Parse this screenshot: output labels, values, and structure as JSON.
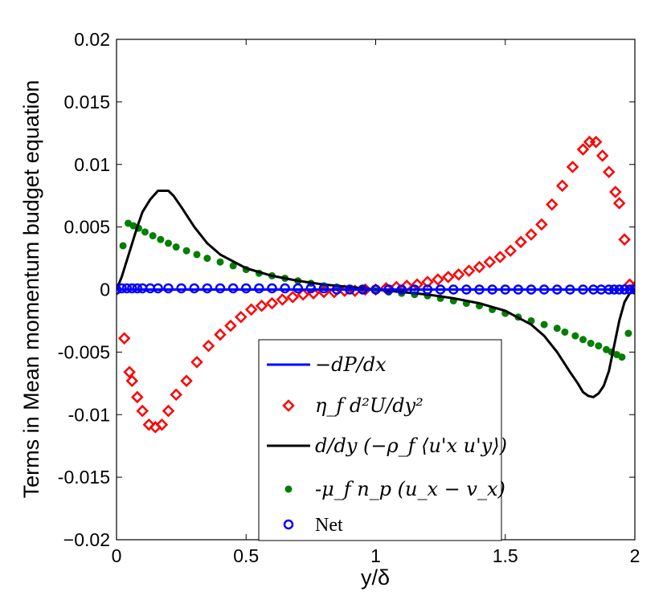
{
  "chart_data": {
    "type": "line",
    "title": "",
    "xlabel": "y/δ",
    "ylabel": "Terms in Mean momentum budget equation",
    "xlim": [
      0,
      2
    ],
    "ylim": [
      -0.02,
      0.02
    ],
    "xticks": [
      0,
      0.5,
      1,
      1.5,
      2
    ],
    "xtick_labels": [
      "0",
      "0.5",
      "1",
      "1.5",
      "2"
    ],
    "yticks": [
      -0.02,
      -0.015,
      -0.01,
      -0.005,
      0,
      0.005,
      0.01,
      0.015,
      0.02
    ],
    "ytick_labels": [
      "−0.02",
      "-0.015",
      "-0.01",
      "-0.005",
      "0",
      "0.005",
      "0.01",
      "0.015",
      "0.02"
    ],
    "legend_position": "bottom-center",
    "series": [
      {
        "name": "-dP/dx",
        "legend_text": "−dP/dx",
        "style": "line",
        "color": "#0000ff",
        "x": [
          0,
          2
        ],
        "values": [
          0.0,
          0.0
        ]
      },
      {
        "name": "eta_f d2U/dy2",
        "legend_text": "η_f d²U/dy²",
        "style": "diamond",
        "color": "#ff0000",
        "x": [
          0.0,
          0.03,
          0.05,
          0.06,
          0.08,
          0.1,
          0.125,
          0.15,
          0.175,
          0.2,
          0.23,
          0.27,
          0.31,
          0.355,
          0.4,
          0.44,
          0.48,
          0.52,
          0.56,
          0.6,
          0.64,
          0.68,
          0.72,
          0.76,
          0.8,
          0.84,
          0.88,
          0.92,
          0.96,
          1.0,
          1.04,
          1.08,
          1.12,
          1.16,
          1.2,
          1.24,
          1.28,
          1.32,
          1.36,
          1.4,
          1.44,
          1.48,
          1.52,
          1.56,
          1.6,
          1.64,
          1.68,
          1.72,
          1.76,
          1.8,
          1.825,
          1.85,
          1.875,
          1.9,
          1.925,
          1.94,
          1.96,
          1.98,
          2.0
        ],
        "values": [
          0.0,
          -0.0039,
          -0.0066,
          -0.0073,
          -0.0086,
          -0.0097,
          -0.0108,
          -0.011,
          -0.0108,
          -0.0097,
          -0.0084,
          -0.0073,
          -0.0058,
          -0.0045,
          -0.0036,
          -0.0029,
          -0.0022,
          -0.0016,
          -0.0013,
          -0.0011,
          -0.0008,
          -0.0006,
          -0.0004,
          -0.0003,
          -0.0002,
          -0.0002,
          -0.0001,
          -0.0001,
          0.0,
          0.0,
          0.0001,
          0.0002,
          0.0003,
          0.0004,
          0.0006,
          0.0008,
          0.001,
          0.0012,
          0.0015,
          0.0018,
          0.0022,
          0.0026,
          0.0031,
          0.0038,
          0.0044,
          0.0052,
          0.0068,
          0.0083,
          0.0098,
          0.0112,
          0.0118,
          0.0118,
          0.0107,
          0.0094,
          0.0078,
          0.0069,
          0.004,
          0.0004,
          0.0002
        ]
      },
      {
        "name": "d/dy(-rho_f <ux'uy'>)",
        "legend_text": "d/dy (−ρ_f ⟨u'x u'y⟩)",
        "style": "line",
        "color": "#000000",
        "x": [
          0.0,
          0.02,
          0.05,
          0.08,
          0.1,
          0.13,
          0.16,
          0.18,
          0.2,
          0.22,
          0.25,
          0.3,
          0.35,
          0.4,
          0.5,
          0.6,
          0.7,
          0.8,
          0.9,
          1.0,
          1.1,
          1.2,
          1.3,
          1.4,
          1.5,
          1.6,
          1.65,
          1.7,
          1.75,
          1.78,
          1.8,
          1.82,
          1.84,
          1.86,
          1.88,
          1.9,
          1.92,
          1.94,
          1.96,
          1.98,
          2.0
        ],
        "values": [
          0.0,
          0.001,
          0.003,
          0.005,
          0.0062,
          0.0072,
          0.0079,
          0.0079,
          0.0079,
          0.0075,
          0.0066,
          0.005,
          0.0037,
          0.0028,
          0.0017,
          0.0011,
          0.0007,
          0.0004,
          0.0002,
          0.0,
          -0.0002,
          -0.0004,
          -0.0007,
          -0.0011,
          -0.0017,
          -0.0028,
          -0.0037,
          -0.005,
          -0.0066,
          -0.0075,
          -0.0082,
          -0.0085,
          -0.0086,
          -0.0083,
          -0.0077,
          -0.0065,
          -0.0045,
          -0.0025,
          -0.001,
          -0.0003,
          0.0
        ]
      },
      {
        "name": "-mu_f n_p (u_x - v_x)",
        "legend_text": "-μ_f n_p (u_x − v_x)",
        "style": "dot",
        "color": "#007f00",
        "x": [
          0.025,
          0.045,
          0.065,
          0.085,
          0.11,
          0.14,
          0.17,
          0.2,
          0.23,
          0.27,
          0.31,
          0.35,
          0.4,
          0.45,
          0.5,
          0.55,
          0.6,
          0.65,
          0.7,
          0.75,
          0.8,
          0.85,
          0.9,
          0.95,
          1.0,
          1.05,
          1.1,
          1.15,
          1.2,
          1.25,
          1.3,
          1.35,
          1.4,
          1.45,
          1.5,
          1.55,
          1.6,
          1.65,
          1.7,
          1.73,
          1.77,
          1.8,
          1.83,
          1.86,
          1.89,
          1.91,
          1.93,
          1.95,
          1.975
        ],
        "values": [
          0.0035,
          0.0053,
          0.0051,
          0.0049,
          0.0046,
          0.0043,
          0.004,
          0.0037,
          0.0034,
          0.0031,
          0.0028,
          0.0025,
          0.0022,
          0.0019,
          0.0016,
          0.0013,
          0.0011,
          0.0009,
          0.0007,
          0.0005,
          0.0003,
          0.0002,
          0.0001,
          0.0,
          -0.0001,
          -0.0002,
          -0.0003,
          -0.0004,
          -0.0005,
          -0.0007,
          -0.0009,
          -0.0011,
          -0.0013,
          -0.0016,
          -0.0019,
          -0.0022,
          -0.0025,
          -0.0028,
          -0.0031,
          -0.0034,
          -0.0037,
          -0.004,
          -0.0043,
          -0.0045,
          -0.0048,
          -0.005,
          -0.0052,
          -0.0054,
          -0.0035
        ]
      },
      {
        "name": "Net",
        "legend_text": "Net",
        "style": "circle",
        "color": "#0000ff",
        "x": [
          0.0,
          0.02,
          0.04,
          0.06,
          0.08,
          0.1,
          0.13,
          0.16,
          0.2,
          0.25,
          0.3,
          0.35,
          0.4,
          0.45,
          0.5,
          0.55,
          0.6,
          0.65,
          0.7,
          0.75,
          0.8,
          0.85,
          0.9,
          0.95,
          1.0,
          1.05,
          1.1,
          1.15,
          1.2,
          1.25,
          1.3,
          1.35,
          1.4,
          1.45,
          1.5,
          1.55,
          1.6,
          1.65,
          1.7,
          1.75,
          1.8,
          1.84,
          1.87,
          1.9,
          1.92,
          1.94,
          1.96,
          1.98,
          2.0
        ],
        "values": [
          0.0,
          0.0001,
          0.0001,
          0.0001,
          0.0001,
          0.0001,
          0.0001,
          0.0001,
          0.0001,
          0.0001,
          0.0001,
          0.0001,
          0.0001,
          0.0001,
          0.0001,
          0.0001,
          0.0001,
          0.0001,
          0.0001,
          0.0001,
          0.0001,
          0.0,
          0.0,
          0.0,
          0.0,
          0.0,
          0.0,
          0.0,
          0.0,
          0.0,
          0.0,
          0.0,
          0.0,
          0.0,
          0.0,
          0.0,
          0.0,
          0.0,
          0.0,
          0.0,
          0.0,
          0.0,
          0.0,
          0.0,
          0.0,
          0.0,
          0.0,
          0.0,
          0.0
        ]
      }
    ]
  }
}
